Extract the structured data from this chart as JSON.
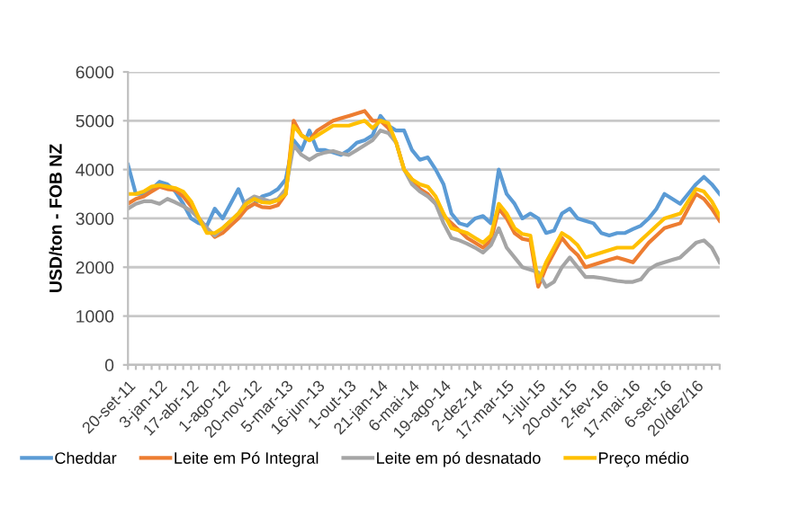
{
  "chart_data": {
    "type": "line",
    "ylabel": "USD/ton - FOB NZ",
    "categories": [
      "20-set-11",
      null,
      null,
      null,
      "3-jan-12",
      null,
      null,
      null,
      "17-abr-12",
      null,
      null,
      null,
      "1-ago-12",
      null,
      null,
      null,
      "20-nov-12",
      null,
      null,
      null,
      "5-mar-13",
      null,
      null,
      null,
      "16-jun-13",
      null,
      null,
      null,
      "1-out-13",
      null,
      null,
      null,
      "21-jan-14",
      null,
      null,
      null,
      "6-mai-14",
      null,
      null,
      null,
      "19-ago-14",
      null,
      null,
      null,
      "2-dez-14",
      null,
      null,
      null,
      "17-mar-15",
      null,
      null,
      null,
      "1-jul-15",
      null,
      null,
      null,
      "20-out-15",
      null,
      null,
      null,
      "2-fev-16",
      null,
      null,
      null,
      "17-mai-16",
      null,
      null,
      null,
      "6-set-16",
      null,
      null,
      null,
      "20/dez/16",
      null,
      null,
      null
    ],
    "ylim": [
      0,
      6000
    ],
    "yticks": [
      0,
      1000,
      2000,
      3000,
      4000,
      5000,
      6000
    ],
    "grid": "y",
    "legend": "bottom",
    "marker": "none",
    "line_style": "solid",
    "series": [
      {
        "name": "Cheddar",
        "color": "#5b9bd5",
        "values": [
          4100,
          3500,
          3500,
          3600,
          3750,
          3700,
          3550,
          3300,
          3000,
          2900,
          2850,
          3200,
          3000,
          3300,
          3600,
          3200,
          3300,
          3450,
          3500,
          3600,
          3800,
          4600,
          4400,
          4800,
          4400,
          4400,
          4350,
          4300,
          4400,
          4550,
          4600,
          4700,
          5100,
          4900,
          4800,
          4800,
          4400,
          4200,
          4250,
          4000,
          3700,
          3100,
          2900,
          2850,
          3000,
          3050,
          2900,
          4000,
          3500,
          3300,
          3000,
          3100,
          3000,
          2700,
          2750,
          3100,
          3200,
          3000,
          2950,
          2900,
          2700,
          2650,
          2700,
          2700,
          2780,
          2850,
          3000,
          3200,
          3500,
          3400,
          3300,
          3500,
          3700,
          3850,
          3700,
          3500
        ]
      },
      {
        "name": "Leite em Pó Integral",
        "color": "#ed7d31",
        "values": [
          3300,
          3400,
          3450,
          3550,
          3650,
          3600,
          3580,
          3450,
          3250,
          3000,
          2800,
          2620,
          2700,
          2850,
          3000,
          3200,
          3300,
          3230,
          3220,
          3270,
          3500,
          5000,
          4700,
          4600,
          4800,
          4900,
          5000,
          5050,
          5100,
          5150,
          5200,
          5000,
          5000,
          4850,
          4550,
          4000,
          3800,
          3600,
          3500,
          3300,
          3050,
          2900,
          2750,
          2600,
          2500,
          2400,
          2550,
          3200,
          3000,
          2700,
          2580,
          2550,
          1600,
          2000,
          2300,
          2600,
          2400,
          2250,
          2000,
          2050,
          2100,
          2150,
          2200,
          2150,
          2100,
          2300,
          2500,
          2650,
          2800,
          2850,
          2900,
          3200,
          3500,
          3400,
          3200,
          2950
        ]
      },
      {
        "name": "Leite em pó desnatado",
        "color": "#a5a5a5",
        "values": [
          3200,
          3300,
          3350,
          3350,
          3300,
          3400,
          3330,
          3250,
          3150,
          3000,
          2800,
          2650,
          2800,
          2950,
          3100,
          3350,
          3450,
          3400,
          3350,
          3400,
          3600,
          4500,
          4300,
          4200,
          4300,
          4350,
          4380,
          4330,
          4300,
          4400,
          4500,
          4600,
          4800,
          4750,
          4550,
          4000,
          3700,
          3550,
          3450,
          3300,
          2900,
          2600,
          2550,
          2480,
          2400,
          2300,
          2450,
          2800,
          2400,
          2200,
          2000,
          1950,
          1900,
          1600,
          1700,
          2000,
          2200,
          2000,
          1800,
          1800,
          1780,
          1750,
          1720,
          1700,
          1700,
          1750,
          1950,
          2050,
          2100,
          2150,
          2200,
          2350,
          2500,
          2550,
          2400,
          2100
        ]
      },
      {
        "name": "Preço médio",
        "color": "#ffc000",
        "values": [
          3500,
          3500,
          3550,
          3650,
          3680,
          3650,
          3620,
          3550,
          3350,
          3000,
          2700,
          2700,
          2800,
          2950,
          3100,
          3300,
          3400,
          3330,
          3320,
          3370,
          3500,
          4900,
          4700,
          4600,
          4700,
          4800,
          4900,
          4900,
          4900,
          4950,
          5000,
          4850,
          5000,
          4950,
          4550,
          4000,
          3800,
          3700,
          3650,
          3450,
          3100,
          2800,
          2750,
          2700,
          2600,
          2500,
          2650,
          3300,
          3100,
          2800,
          2680,
          2650,
          1700,
          2100,
          2400,
          2700,
          2600,
          2450,
          2200,
          2250,
          2300,
          2350,
          2400,
          2400,
          2400,
          2550,
          2700,
          2850,
          3000,
          3050,
          3100,
          3350,
          3600,
          3550,
          3350,
          3050
        ]
      }
    ]
  }
}
